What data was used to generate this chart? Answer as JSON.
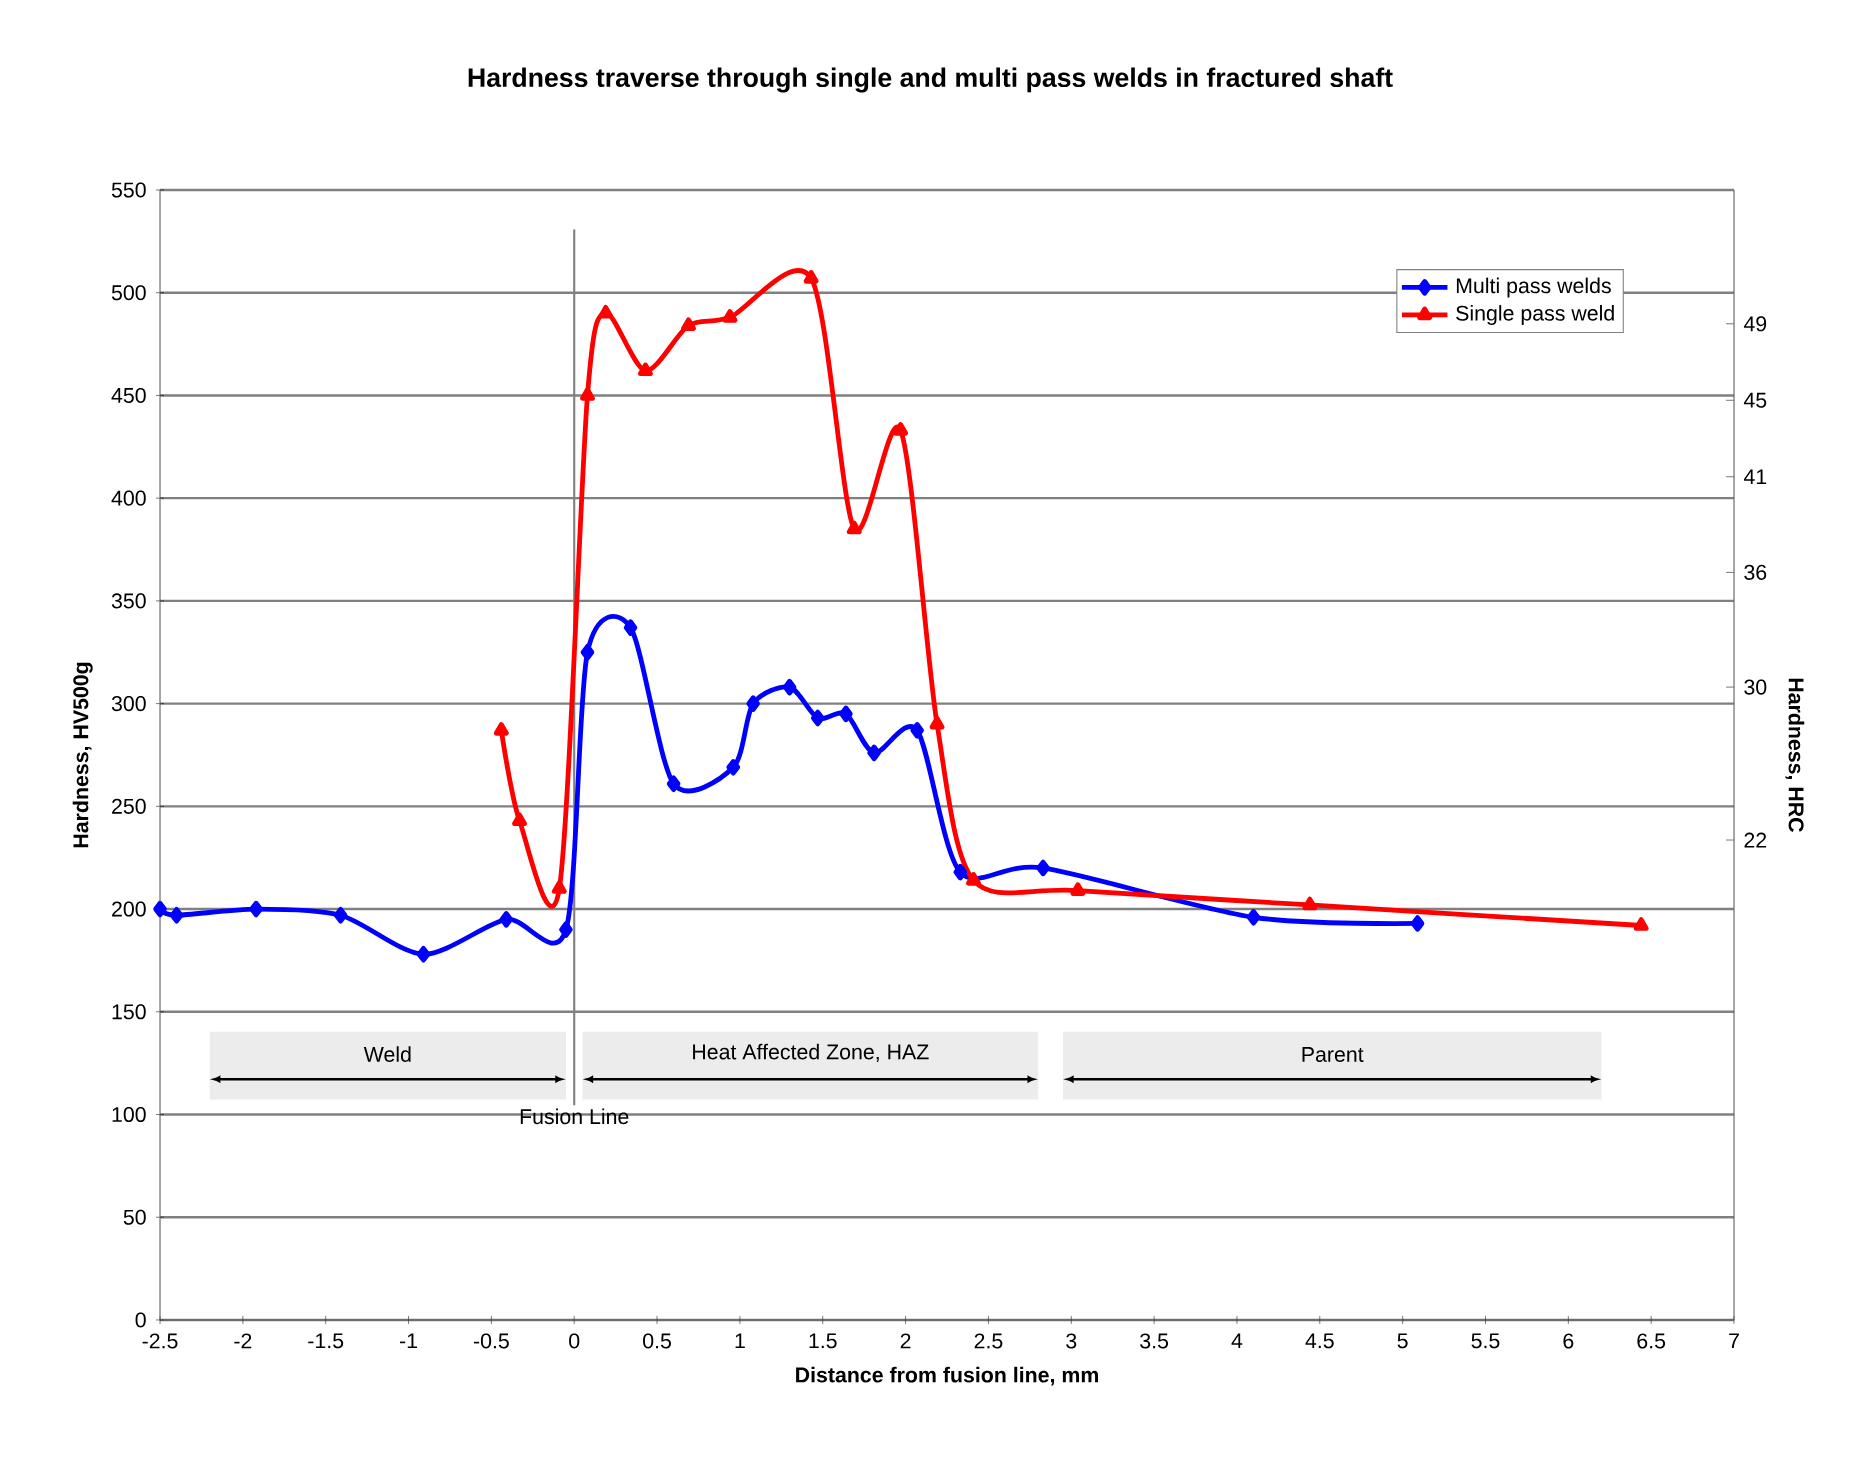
{
  "chart_data": {
    "type": "line",
    "title": "Hardness traverse through single and multi pass welds in fractured shaft",
    "xlabel": "Distance from fusion line, mm",
    "ylabel": "Hardness, HV500g",
    "y2label": "Hardness, HRC",
    "xlim": [
      -2.5,
      7
    ],
    "xticks": [
      -2.5,
      -2,
      -1.5,
      -1,
      -0.5,
      0,
      0.5,
      1,
      1.5,
      2,
      2.5,
      3,
      3.5,
      4,
      4.5,
      5,
      5.5,
      6,
      6.5,
      7
    ],
    "ylim": [
      0,
      550
    ],
    "yticks": [
      0,
      50,
      100,
      150,
      200,
      250,
      300,
      350,
      400,
      450,
      500,
      550
    ],
    "y2lim": [
      -3.1,
      56
    ],
    "y2ticks": [
      22,
      30,
      36,
      41,
      45,
      49
    ],
    "grid": "y",
    "legend": "top right",
    "line_style": "solid",
    "series": [
      {
        "name": "Multi pass welds",
        "color": "#0000ff",
        "marker": "diamond",
        "x": [
          -2.5,
          -2.4,
          -1.92,
          -1.41,
          -0.91,
          -0.41,
          -0.05,
          0.08,
          0.34,
          0.6,
          0.96,
          1.08,
          1.3,
          1.47,
          1.64,
          1.81,
          2.07,
          2.33,
          2.83,
          4.1,
          5.09
        ],
        "values": [
          200,
          197,
          200,
          197,
          178,
          195,
          190,
          325,
          337,
          261,
          269,
          300,
          308,
          293,
          295,
          276,
          287,
          218,
          220,
          196,
          193
        ]
      },
      {
        "name": "Single pass weld",
        "color": "#ff0000",
        "marker": "triangle",
        "x": [
          -0.44,
          -0.33,
          -0.09,
          0.08,
          0.19,
          0.43,
          0.69,
          0.94,
          1.43,
          1.69,
          1.97,
          2.19,
          2.41,
          3.04,
          4.44,
          6.44
        ],
        "values": [
          287,
          243,
          210,
          450,
          490,
          462,
          484,
          488,
          507,
          385,
          433,
          290,
          214,
          209,
          202,
          192
        ]
      }
    ],
    "ref_lines": [
      {
        "axis": "x",
        "value": 0,
        "label": "Fusion Line"
      }
    ],
    "bands": [
      {
        "axis": "x",
        "from": -2.2,
        "to": -0.05,
        "label": "Weld",
        "color": "#ececec"
      },
      {
        "axis": "x",
        "from": 0.05,
        "to": 2.8,
        "label": "Heat Affected Zone, HAZ",
        "color": "#ececec"
      },
      {
        "axis": "x",
        "from": 2.95,
        "to": 6.2,
        "label": "Parent",
        "color": "#ececec"
      }
    ]
  }
}
